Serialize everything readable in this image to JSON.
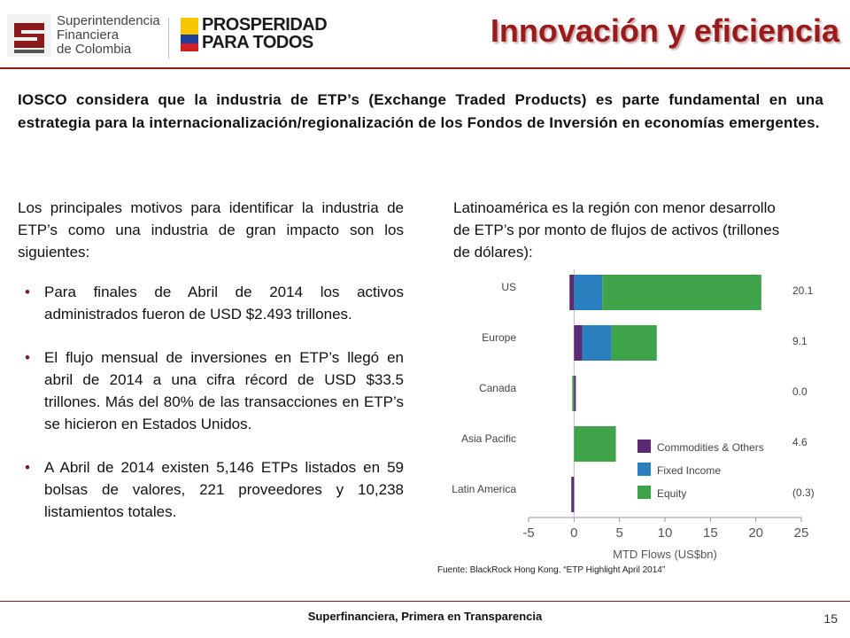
{
  "header": {
    "org_lines": [
      "Superintendencia",
      "Financiera",
      "de Colombia"
    ],
    "gov_lines": [
      "PROSPERIDAD",
      "PARA TODOS"
    ],
    "title": "Innovación y eficiencia"
  },
  "intro": "IOSCO considera que la industria de ETP’s (Exchange Traded Products) es parte fundamental en una estrategia para la internacionalización/regionalización de los Fondos de Inversión en economías emergentes.",
  "left": {
    "lead": "Los principales motivos para identificar la industria de ETP’s como una industria de gran impacto son los siguientes:",
    "bullets": [
      "Para finales de Abril de 2014 los activos administrados fueron de USD $2.493 trillones.",
      "El flujo mensual de inversiones en ETP’s llegó en abril de 2014 a una cifra récord de USD $33.5 trillones. Más del 80% de las transacciones en ETP’s se hicieron en Estados Unidos.",
      "A Abril de 2014 existen 5,146 ETPs listados en 59 bolsas de valores, 221 proveedores y 10,238 listamientos totales."
    ]
  },
  "right": {
    "text": "Latinoamérica es la región con menor desarrollo de ETP’s por monto de flujos de activos (trillones de dólares):",
    "source": "Fuente: BlackRock Hong Kong. “ETP Highlight April 2014”"
  },
  "chart_data": {
    "type": "bar",
    "orientation": "horizontal",
    "stacked": true,
    "categories": [
      "US",
      "Europe",
      "Canada",
      "Asia Pacific",
      "Latin America"
    ],
    "totals": [
      "20.1",
      "9.1",
      "0.0",
      "4.6",
      "(0.3)"
    ],
    "series": [
      {
        "name": "Commodities & Others",
        "color": "#5b2a72",
        "values": [
          -0.5,
          0.9,
          0.2,
          0.0,
          -0.3
        ]
      },
      {
        "name": "Fixed Income",
        "color": "#2a7fbf",
        "values": [
          3.1,
          3.2,
          0.0,
          0.0,
          0.0
        ]
      },
      {
        "name": "Equity",
        "color": "#3fa34a",
        "values": [
          17.5,
          5.0,
          -0.2,
          4.6,
          0.0
        ]
      }
    ],
    "xlabel": "MTD Flows (US$bn)",
    "xlim": [
      -5,
      25
    ],
    "xticks": [
      -5,
      0,
      5,
      10,
      15,
      20,
      25
    ],
    "legend_position": "lower-right"
  },
  "footer": {
    "text": "Superfinanciera, Primera en Transparencia",
    "page": "15"
  }
}
